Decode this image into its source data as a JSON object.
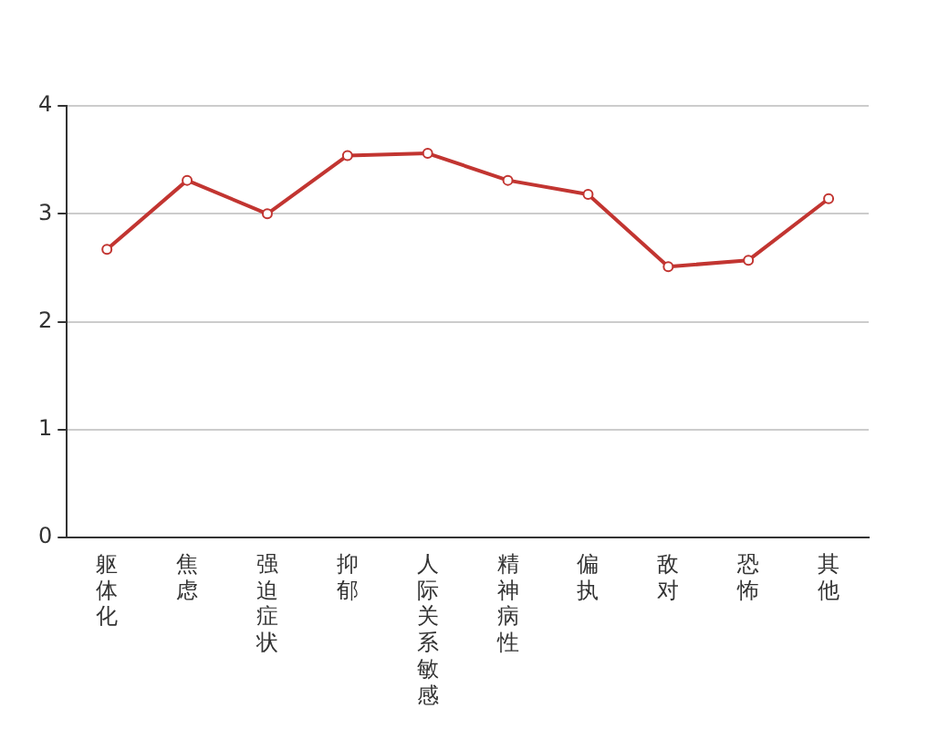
{
  "chart_data": {
    "type": "line",
    "categories": [
      "躯体化",
      "焦虑",
      "强迫症状",
      "抑郁",
      "人际关系敏感",
      "精神病性",
      "偏执",
      "敌对",
      "恐怖",
      "其他"
    ],
    "series": [
      {
        "color": "#c23531",
        "values": [
          2.67,
          3.31,
          3.0,
          3.54,
          3.56,
          3.31,
          3.18,
          2.51,
          2.57,
          3.14
        ]
      }
    ],
    "ylim": [
      0,
      4
    ],
    "yticks": [
      0,
      1,
      2,
      3,
      4
    ],
    "grid": "y",
    "legend": false,
    "marker": "circle",
    "line_style": "solid"
  }
}
